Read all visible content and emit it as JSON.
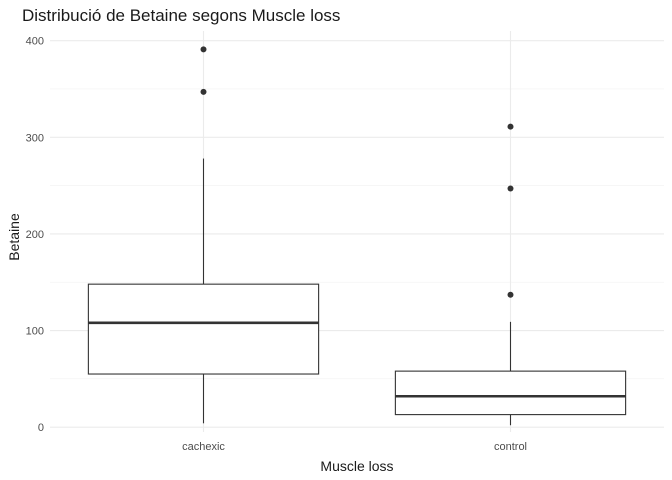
{
  "chart_data": {
    "type": "boxplot",
    "title": "Distribució de Betaine segons Muscle loss",
    "xlabel": "Muscle loss",
    "ylabel": "Betaine",
    "categories": [
      "cachexic",
      "control"
    ],
    "ylim": [
      -5,
      410
    ],
    "yticks": [
      0,
      100,
      200,
      300,
      400
    ],
    "grid": true,
    "boxes": [
      {
        "category": "cachexic",
        "whisker_low": 4,
        "q1": 55,
        "median": 108,
        "q3": 148,
        "whisker_high": 278,
        "outliers": [
          347,
          391
        ]
      },
      {
        "category": "control",
        "whisker_low": 2,
        "q1": 13,
        "median": 32,
        "q3": 58,
        "whisker_high": 109,
        "outliers": [
          137,
          247,
          311
        ]
      }
    ]
  }
}
